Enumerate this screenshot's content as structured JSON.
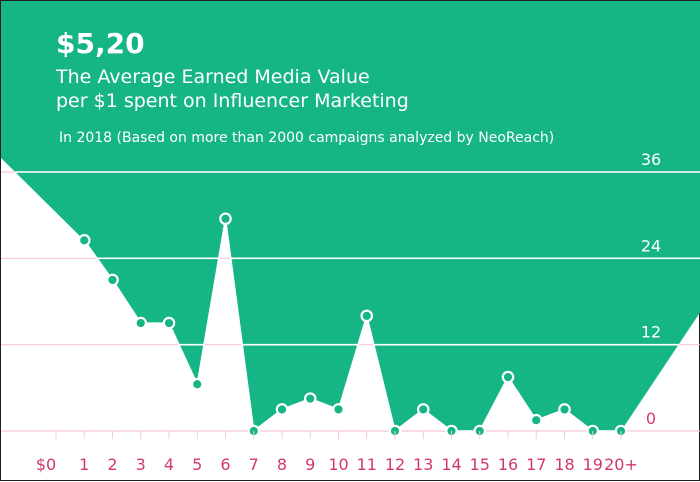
{
  "chart_data": {
    "type": "area",
    "headline": "$5,20",
    "title_line1": "The Average Earned Media Value",
    "title_line2": "per $1 spent on Influencer Marketing",
    "subtitle": "In 2018 (Based on more than 2000 campaigns analyzed by NeoReach)",
    "categories": [
      "$0",
      "1",
      "2",
      "3",
      "4",
      "5",
      "6",
      "7",
      "8",
      "9",
      "10",
      "11",
      "12",
      "13",
      "14",
      "15",
      "16",
      "17",
      "18",
      "19",
      "20+"
    ],
    "values": [
      null,
      26.5,
      21,
      15,
      15,
      6.5,
      29.5,
      0,
      3,
      4.5,
      3,
      16,
      0,
      3,
      0,
      0,
      7.5,
      1.5,
      3,
      0,
      0
    ],
    "y_ticks": [
      0,
      12,
      24,
      36
    ],
    "ylim": [
      0,
      36
    ],
    "grid": true,
    "xlabel": "",
    "ylabel": ""
  },
  "colors": {
    "fill": "#16b585",
    "marker_stroke": "#ffffff",
    "marker_fill": "#16b585",
    "gridline_on_fill": "#ffffff",
    "gridline_on_white": "#f5c8d5",
    "x_tick_color": "#d4366f",
    "y_tick_color": "#ffffff",
    "zero_tick_color": "#d4366f"
  }
}
